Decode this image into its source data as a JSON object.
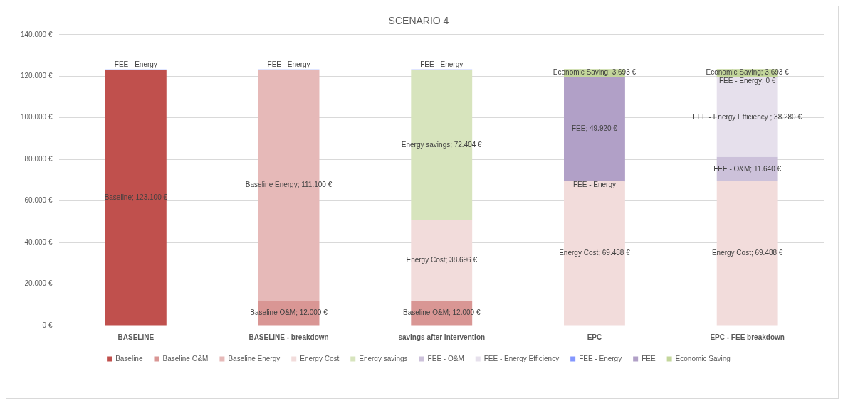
{
  "chart_data": {
    "type": "bar",
    "title": "SCENARIO 4",
    "stacked": true,
    "grid": "y",
    "legend": "bottom",
    "categories": [
      "BASELINE",
      "BASELINE - breakdown",
      "savings after intervention",
      "EPC",
      "EPC - FEE breakdown"
    ],
    "ylim": [
      0,
      140000
    ],
    "yticks": [
      {
        "value": 0,
        "label": "0 €"
      },
      {
        "value": 20000,
        "label": "20.000 €"
      },
      {
        "value": 40000,
        "label": "40.000 €"
      },
      {
        "value": 60000,
        "label": "60.000 €"
      },
      {
        "value": 80000,
        "label": "80.000 €"
      },
      {
        "value": 100000,
        "label": "100.000 €"
      },
      {
        "value": 120000,
        "label": "120.000 €"
      },
      {
        "value": 140000,
        "label": "140.000 €"
      }
    ],
    "series": [
      {
        "name": "Baseline",
        "color": "#c0504d",
        "values": [
          123100,
          null,
          null,
          null,
          null
        ],
        "value_labels": [
          "Baseline; 123.100 €",
          null,
          null,
          null,
          null
        ]
      },
      {
        "name": "Baseline O&M",
        "color": "#d99694",
        "values": [
          null,
          12000,
          12000,
          null,
          null
        ],
        "value_labels": [
          null,
          "Baseline O&M; 12.000 €",
          "Baseline O&M; 12.000 €",
          null,
          null
        ]
      },
      {
        "name": "Baseline Energy",
        "color": "#e6b9b8",
        "values": [
          null,
          111100,
          null,
          null,
          null
        ],
        "value_labels": [
          null,
          "Baseline Energy; 111.100 €",
          null,
          null,
          null
        ]
      },
      {
        "name": "Energy Cost",
        "color": "#f2dcdb",
        "values": [
          null,
          null,
          38696,
          69488,
          69488
        ],
        "value_labels": [
          null,
          null,
          "Energy Cost; 38.696 €",
          "Energy Cost; 69.488 €",
          "Energy Cost; 69.488 €"
        ]
      },
      {
        "name": "Energy savings",
        "color": "#d7e4bd",
        "values": [
          null,
          null,
          72404,
          null,
          null
        ],
        "value_labels": [
          null,
          null,
          "Energy savings; 72.404 €",
          null,
          null
        ]
      },
      {
        "name": "FEE - O&M",
        "color": "#ccc1da",
        "values": [
          null,
          null,
          null,
          null,
          11640
        ],
        "value_labels": [
          null,
          null,
          null,
          null,
          "FEE - O&M; 11.640 €"
        ]
      },
      {
        "name": "FEE - Energy Efficiency",
        "color": "#e6e0ec",
        "values": [
          null,
          null,
          null,
          null,
          38280
        ],
        "value_labels": [
          null,
          null,
          null,
          null,
          "FEE - Energy Efficiency ; 38.280 €"
        ]
      },
      {
        "name": "FEE - Energy",
        "color": "#8497fe",
        "values": [
          0,
          0,
          0,
          0,
          0
        ],
        "value_labels": [
          "FEE - Energy",
          "FEE - Energy",
          "FEE - Energy",
          "FEE - Energy",
          "FEE - Energy; 0 €"
        ]
      },
      {
        "name": "FEE",
        "color": "#b1a0c7",
        "values": [
          null,
          null,
          null,
          49920,
          null
        ],
        "value_labels": [
          null,
          null,
          null,
          "FEE; 49.920 €",
          null
        ]
      },
      {
        "name": "Economic Saving",
        "color": "#c3d69b",
        "values": [
          null,
          null,
          null,
          3693,
          3693
        ],
        "value_labels": [
          null,
          null,
          null,
          "Economic Saving; 3.693 €",
          "Economic Saving; 3.693 €"
        ]
      }
    ]
  }
}
